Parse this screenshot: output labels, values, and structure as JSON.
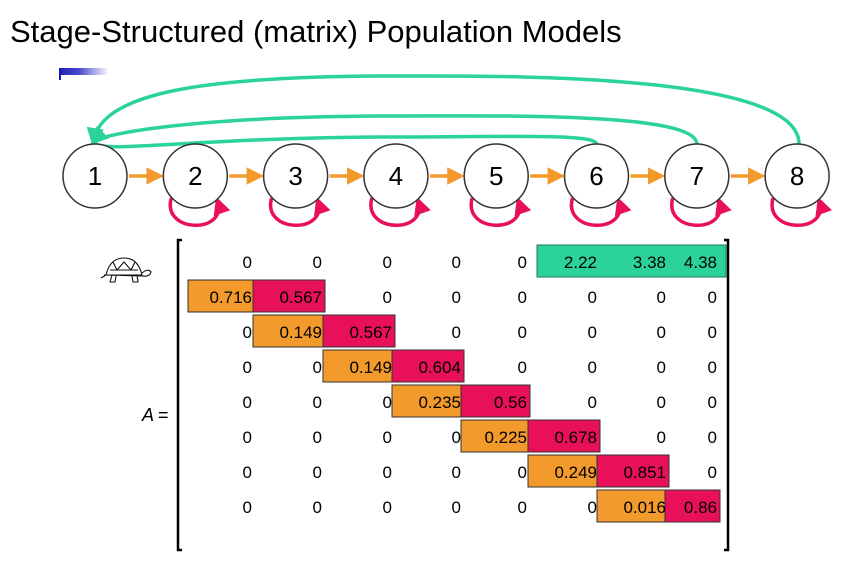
{
  "title": "Stage-Structured (matrix) Population Models",
  "matrix_label": "A",
  "matrix_equals": "=",
  "icon": "turtle-icon",
  "colors": {
    "fecundity": "#2bd39a",
    "transition": "#f39a2c",
    "survival": "#e8105a",
    "node_stroke": "#333333",
    "title_accent": "#1c1cb4"
  },
  "stages": [
    "1",
    "2",
    "3",
    "4",
    "5",
    "6",
    "7",
    "8"
  ],
  "matrix": [
    [
      "0",
      "0",
      "0",
      "0",
      "0",
      "2.22",
      "3.38",
      "4.38"
    ],
    [
      "0.716",
      "0.567",
      "0",
      "0",
      "0",
      "0",
      "0",
      "0"
    ],
    [
      "0",
      "0.149",
      "0.567",
      "0",
      "0",
      "0",
      "0",
      "0"
    ],
    [
      "0",
      "0",
      "0.149",
      "0.604",
      "0",
      "0",
      "0",
      "0"
    ],
    [
      "0",
      "0",
      "0",
      "0.235",
      "0.56",
      "0",
      "0",
      "0"
    ],
    [
      "0",
      "0",
      "0",
      "0",
      "0.225",
      "0.678",
      "0",
      "0"
    ],
    [
      "0",
      "0",
      "0",
      "0",
      "0",
      "0.249",
      "0.851",
      "0"
    ],
    [
      "0",
      "0",
      "0",
      "0",
      "0",
      "0",
      "0.016",
      "0.86"
    ]
  ],
  "highlights": {
    "fecundity_row": 0,
    "fecundity_cols": [
      5,
      7
    ]
  }
}
